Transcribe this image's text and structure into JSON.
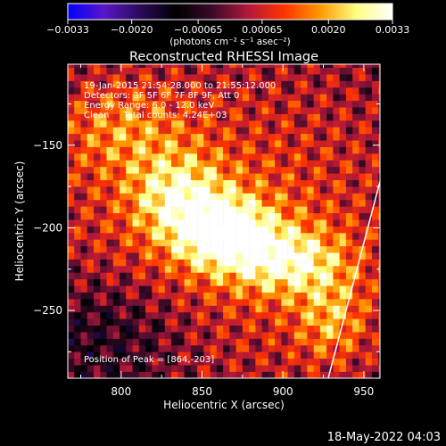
{
  "chart_data": {
    "type": "heatmap",
    "title": "Reconstructed RHESSI Image",
    "xlabel": "Heliocentric X (arcsec)",
    "ylabel": "Heliocentric Y (arcsec)",
    "xlim": [
      767,
      960
    ],
    "ylim": [
      -291,
      -101
    ],
    "x_ticks": [
      800,
      850,
      900,
      950
    ],
    "x_tick_labels": [
      "800",
      "850",
      "900",
      "950"
    ],
    "y_ticks": [
      -150,
      -200,
      -250
    ],
    "y_tick_labels": [
      "−150",
      "−200",
      "−250"
    ],
    "colorbar": {
      "min": -0.0033,
      "max": 0.0033,
      "ticks": [
        -0.0033,
        -0.002,
        -0.00065,
        0.00065,
        0.002,
        0.0033
      ],
      "tick_labels": [
        "−0.0033",
        "−0.0020",
        "−0.00065",
        "0.00065",
        "0.0020",
        "0.0033"
      ],
      "unit_text": "(photons cm⁻² s⁻¹ asec⁻²)",
      "colormap_stops": [
        "#0000ff",
        "#5a16c8",
        "#2a0a5c",
        "#000000",
        "#3a0a2a",
        "#b2183a",
        "#ff3300",
        "#ff9900",
        "#ffff80",
        "#ffffff"
      ]
    },
    "info_lines": [
      "19-Jan-2015 21:54:28.000 to 21:55:12.000",
      "Detectors: 3F 5F 6F 7F 8F 9F, Att 0",
      "Energy Range: 6.0 - 12.0 keV",
      "Clean     Total counts: 4.24E+03"
    ],
    "peak_label": "Position of Peak = [864,-203]",
    "peak": {
      "x": 864,
      "y": -203
    },
    "limb_line": {
      "from": {
        "x": 928,
        "y": -291
      },
      "to": {
        "x": 960,
        "y": -172
      }
    },
    "pixel_size_arcsec": 4,
    "source_centers": [
      {
        "x": 864,
        "y": -203,
        "amp": 0.0033,
        "sx": 22,
        "sy": 16
      },
      {
        "x": 835,
        "y": -180,
        "amp": 0.0019,
        "sx": 20,
        "sy": 18
      },
      {
        "x": 905,
        "y": -220,
        "amp": 0.0021,
        "sx": 24,
        "sy": 14
      },
      {
        "x": 930,
        "y": -255,
        "amp": 0.0014,
        "sx": 15,
        "sy": 18
      },
      {
        "x": 800,
        "y": -140,
        "amp": 0.0012,
        "sx": 28,
        "sy": 20
      }
    ],
    "negative_region": {
      "x": 790,
      "y": -265,
      "amp": -0.0012,
      "sx": 40,
      "sy": 28
    }
  },
  "footer_timestamp": "18-May-2022 04:03"
}
